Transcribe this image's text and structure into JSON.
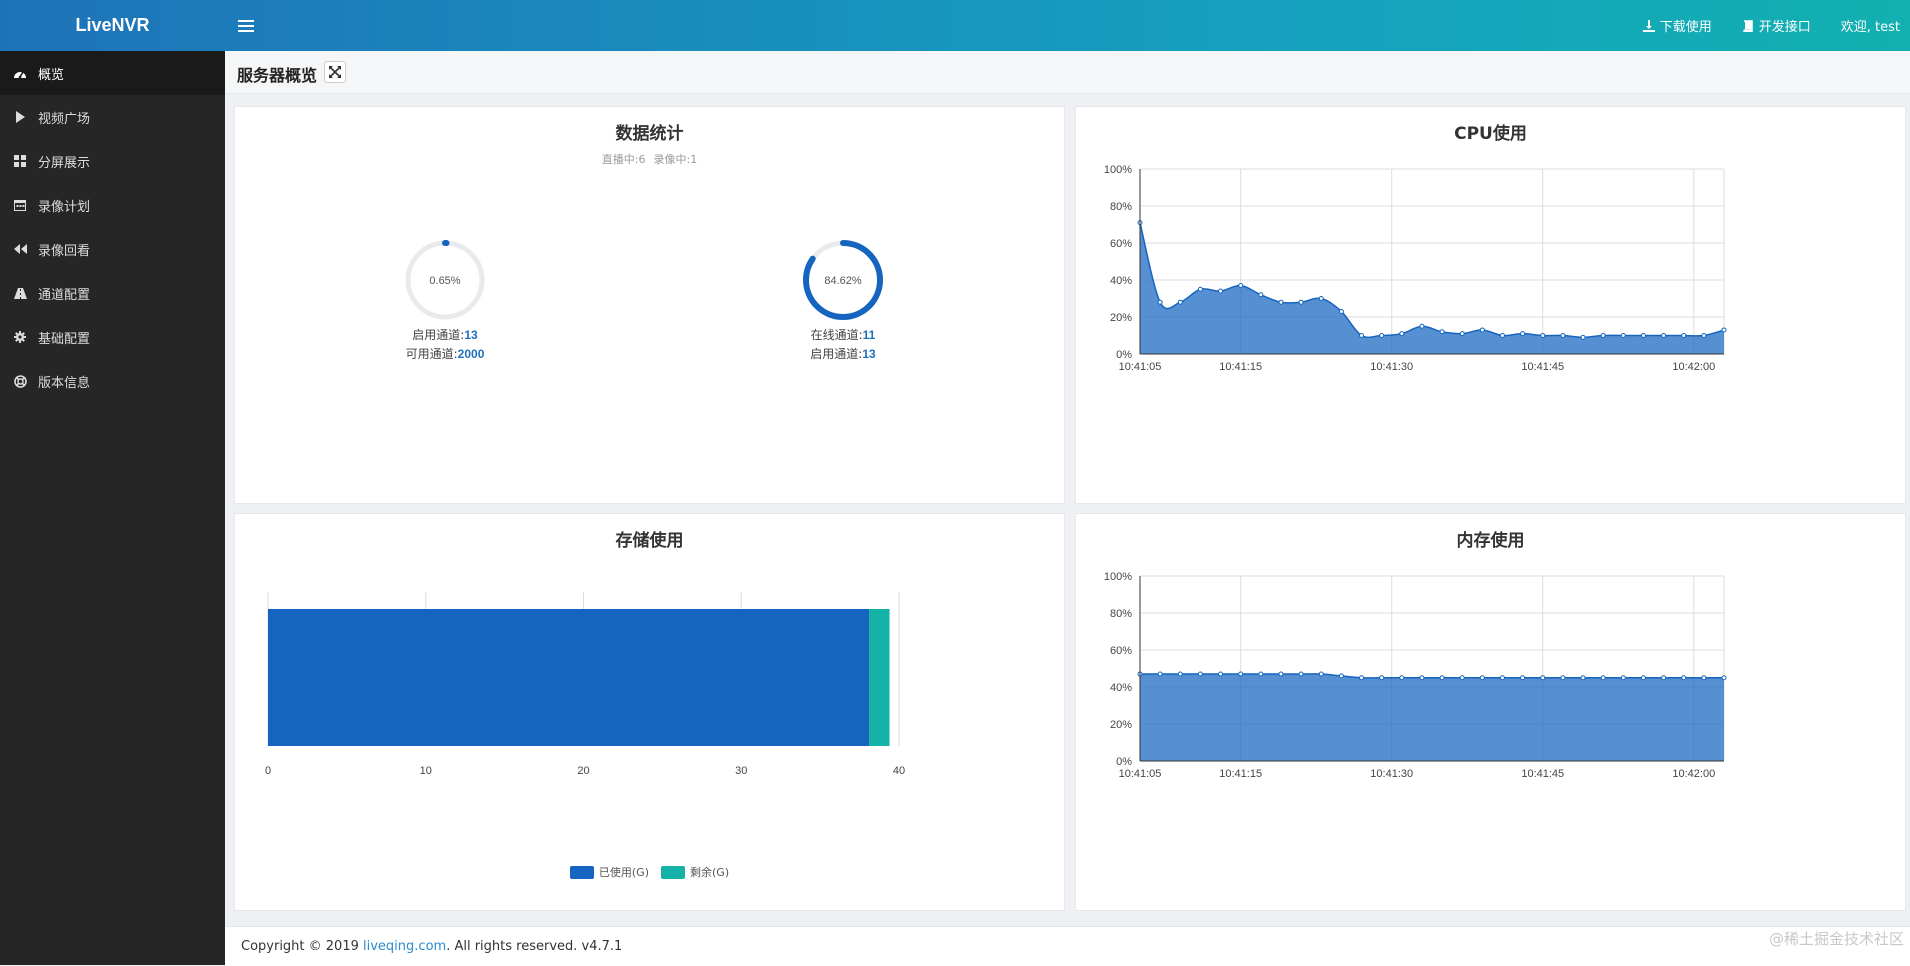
{
  "app": {
    "brand": "LiveNVR",
    "colors": {
      "primary": "#1565c0",
      "accent": "#14b1a6",
      "sidebar": "#262626"
    }
  },
  "header": {
    "download_label": "下载使用",
    "api_label": "开发接口",
    "welcome": "欢迎, test"
  },
  "sidebar": {
    "items": [
      {
        "label": "概览",
        "icon": "dashboard-icon",
        "active": true
      },
      {
        "label": "视频广场",
        "icon": "play-icon"
      },
      {
        "label": "分屏展示",
        "icon": "grid-icon"
      },
      {
        "label": "录像计划",
        "icon": "calendar-icon"
      },
      {
        "label": "录像回看",
        "icon": "backward-icon"
      },
      {
        "label": "通道配置",
        "icon": "road-icon"
      },
      {
        "label": "基础配置",
        "icon": "gear-icon"
      },
      {
        "label": "版本信息",
        "icon": "lifebuoy-icon"
      }
    ]
  },
  "page": {
    "title": "服务器概览"
  },
  "stats_panel": {
    "title": "数据统计",
    "live_text": "直播中:6",
    "record_text": "录像中:1",
    "gauge_left": {
      "percent_label": "0.65%",
      "value": 0.0065,
      "line1_label": "启用通道:",
      "line1_value": "13",
      "line2_label": "可用通道:",
      "line2_value": "2000"
    },
    "gauge_right": {
      "percent_label": "84.62%",
      "value": 0.8462,
      "line1_label": "在线通道:",
      "line1_value": "11",
      "line2_label": "启用通道:",
      "line2_value": "13"
    }
  },
  "cpu_panel": {
    "title": "CPU使用"
  },
  "storage_panel": {
    "title": "存储使用"
  },
  "memory_panel": {
    "title": "内存使用"
  },
  "footer": {
    "prefix": "Copyright © 2019 ",
    "link": "liveqing.com",
    "suffix": ". All rights reserved. v4.7.1"
  },
  "watermark": "@稀土掘金技术社区",
  "chart_data": [
    {
      "type": "area",
      "title": "CPU使用",
      "y_ticks": [
        "0%",
        "20%",
        "40%",
        "60%",
        "80%",
        "100%"
      ],
      "ylim": [
        0,
        100
      ],
      "x_ticks": [
        "10:41:05",
        "10:41:15",
        "10:41:30",
        "10:41:45",
        "10:42:00"
      ],
      "x_tick_positions": [
        0,
        10,
        25,
        40,
        55
      ],
      "x_range": [
        0,
        58
      ],
      "values": [
        71,
        28,
        28,
        35,
        34,
        37,
        32,
        28,
        28,
        30,
        23,
        10,
        10,
        11,
        15,
        12,
        11,
        13,
        10,
        11,
        10,
        10,
        9,
        10,
        10,
        10,
        10,
        10,
        10,
        13
      ],
      "color": "#1565c0"
    },
    {
      "type": "bar",
      "title": "存储使用",
      "orientation": "horizontal",
      "stacked": true,
      "x_ticks": [
        "0",
        "10",
        "20",
        "30",
        "40"
      ],
      "xlim": [
        0,
        40
      ],
      "series": [
        {
          "name": "已使用(G)",
          "values": [
            38.1
          ],
          "color": "#1565c0"
        },
        {
          "name": "剩余(G)",
          "values": [
            1.3
          ],
          "color": "#14b1a6"
        }
      ]
    },
    {
      "type": "area",
      "title": "内存使用",
      "y_ticks": [
        "0%",
        "20%",
        "40%",
        "60%",
        "80%",
        "100%"
      ],
      "ylim": [
        0,
        100
      ],
      "x_ticks": [
        "10:41:05",
        "10:41:15",
        "10:41:30",
        "10:41:45",
        "10:42:00"
      ],
      "x_tick_positions": [
        0,
        10,
        25,
        40,
        55
      ],
      "x_range": [
        0,
        58
      ],
      "values": [
        47,
        47,
        47,
        47,
        47,
        47,
        47,
        47,
        47,
        47,
        46,
        45,
        45,
        45,
        45,
        45,
        45,
        45,
        45,
        45,
        45,
        45,
        45,
        45,
        45,
        45,
        45,
        45,
        45,
        45
      ],
      "color": "#1565c0"
    }
  ]
}
